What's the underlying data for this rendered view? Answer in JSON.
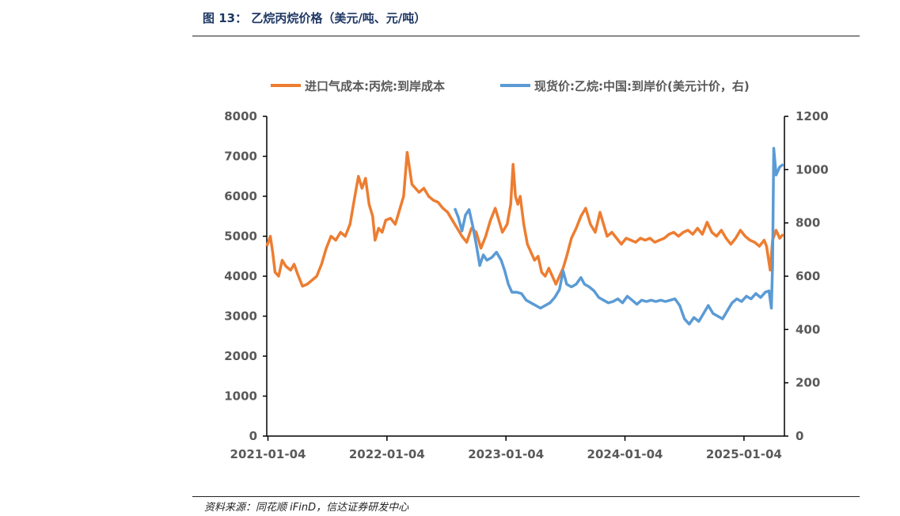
{
  "header": {
    "title": "图 13：  乙烷丙烷价格（美元/吨、元/吨）"
  },
  "footer": {
    "source": "资料来源：同花顺 iFinD，信达证券研发中心"
  },
  "colors": {
    "orange": "#ed7d31",
    "blue": "#5b9bd5",
    "axis": "#595959"
  },
  "chart_data": {
    "type": "line",
    "title": "乙烷丙烷价格（美元/吨、元/吨）",
    "x_ticks": [
      "2021-01-04",
      "2022-01-04",
      "2023-01-04",
      "2024-01-04",
      "2025-01-04"
    ],
    "y_left": {
      "ylim": [
        0,
        8000
      ],
      "ticks": [
        "0",
        "1000",
        "2000",
        "3000",
        "4000",
        "5000",
        "6000",
        "7000",
        "8000"
      ]
    },
    "y_right": {
      "ylim": [
        0,
        1200
      ],
      "ticks": [
        "0",
        "200",
        "400",
        "600",
        "800",
        "1000",
        "1200"
      ]
    },
    "series": [
      {
        "name": "进口气成本:丙烷:到岸成本",
        "axis": "left",
        "points": [
          [
            2021.0,
            4750
          ],
          [
            2021.03,
            5000
          ],
          [
            2021.05,
            4600
          ],
          [
            2021.07,
            4100
          ],
          [
            2021.1,
            4000
          ],
          [
            2021.13,
            4400
          ],
          [
            2021.16,
            4250
          ],
          [
            2021.2,
            4150
          ],
          [
            2021.23,
            4300
          ],
          [
            2021.26,
            4050
          ],
          [
            2021.3,
            3750
          ],
          [
            2021.34,
            3800
          ],
          [
            2021.38,
            3900
          ],
          [
            2021.42,
            4000
          ],
          [
            2021.46,
            4300
          ],
          [
            2021.5,
            4700
          ],
          [
            2021.54,
            5000
          ],
          [
            2021.58,
            4900
          ],
          [
            2021.62,
            5100
          ],
          [
            2021.66,
            5000
          ],
          [
            2021.7,
            5300
          ],
          [
            2021.74,
            6000
          ],
          [
            2021.77,
            6500
          ],
          [
            2021.8,
            6200
          ],
          [
            2021.83,
            6450
          ],
          [
            2021.86,
            5800
          ],
          [
            2021.89,
            5500
          ],
          [
            2021.91,
            4900
          ],
          [
            2021.94,
            5200
          ],
          [
            2021.97,
            5100
          ],
          [
            2022.0,
            5400
          ],
          [
            2022.04,
            5450
          ],
          [
            2022.08,
            5300
          ],
          [
            2022.12,
            5700
          ],
          [
            2022.15,
            6000
          ],
          [
            2022.18,
            7100
          ],
          [
            2022.2,
            6700
          ],
          [
            2022.22,
            6300
          ],
          [
            2022.25,
            6200
          ],
          [
            2022.28,
            6100
          ],
          [
            2022.32,
            6200
          ],
          [
            2022.36,
            6000
          ],
          [
            2022.4,
            5900
          ],
          [
            2022.44,
            5850
          ],
          [
            2022.48,
            5700
          ],
          [
            2022.52,
            5600
          ],
          [
            2022.56,
            5400
          ],
          [
            2022.6,
            5200
          ],
          [
            2022.64,
            5000
          ],
          [
            2022.68,
            4850
          ],
          [
            2022.72,
            5200
          ],
          [
            2022.76,
            5100
          ],
          [
            2022.8,
            4700
          ],
          [
            2022.84,
            5000
          ],
          [
            2022.88,
            5400
          ],
          [
            2022.92,
            5700
          ],
          [
            2022.95,
            5400
          ],
          [
            2022.98,
            5100
          ],
          [
            2023.02,
            5300
          ],
          [
            2023.05,
            5800
          ],
          [
            2023.07,
            6800
          ],
          [
            2023.09,
            6000
          ],
          [
            2023.11,
            5800
          ],
          [
            2023.13,
            6000
          ],
          [
            2023.16,
            5300
          ],
          [
            2023.19,
            4800
          ],
          [
            2023.22,
            4600
          ],
          [
            2023.25,
            4400
          ],
          [
            2023.28,
            4500
          ],
          [
            2023.31,
            4100
          ],
          [
            2023.34,
            4000
          ],
          [
            2023.37,
            4200
          ],
          [
            2023.4,
            4000
          ],
          [
            2023.43,
            3800
          ],
          [
            2023.46,
            4000
          ],
          [
            2023.49,
            4200
          ],
          [
            2023.52,
            4500
          ],
          [
            2023.56,
            4950
          ],
          [
            2023.6,
            5200
          ],
          [
            2023.64,
            5500
          ],
          [
            2023.68,
            5700
          ],
          [
            2023.72,
            5300
          ],
          [
            2023.76,
            5100
          ],
          [
            2023.8,
            5600
          ],
          [
            2023.83,
            5300
          ],
          [
            2023.86,
            5000
          ],
          [
            2023.9,
            5100
          ],
          [
            2023.94,
            4950
          ],
          [
            2023.98,
            4800
          ],
          [
            2024.02,
            4950
          ],
          [
            2024.06,
            4900
          ],
          [
            2024.1,
            4850
          ],
          [
            2024.14,
            4950
          ],
          [
            2024.18,
            4900
          ],
          [
            2024.22,
            4950
          ],
          [
            2024.26,
            4850
          ],
          [
            2024.3,
            4900
          ],
          [
            2024.34,
            4950
          ],
          [
            2024.38,
            5050
          ],
          [
            2024.42,
            5100
          ],
          [
            2024.46,
            5000
          ],
          [
            2024.5,
            5100
          ],
          [
            2024.54,
            5150
          ],
          [
            2024.58,
            5050
          ],
          [
            2024.62,
            5200
          ],
          [
            2024.66,
            5050
          ],
          [
            2024.7,
            5350
          ],
          [
            2024.74,
            5100
          ],
          [
            2024.78,
            5000
          ],
          [
            2024.82,
            5150
          ],
          [
            2024.86,
            4950
          ],
          [
            2024.9,
            4800
          ],
          [
            2024.94,
            4950
          ],
          [
            2024.98,
            5150
          ],
          [
            2025.02,
            5000
          ],
          [
            2025.06,
            4900
          ],
          [
            2025.1,
            4850
          ],
          [
            2025.14,
            4750
          ],
          [
            2025.18,
            4900
          ],
          [
            2025.2,
            4750
          ],
          [
            2025.23,
            4150
          ],
          [
            2025.25,
            4900
          ],
          [
            2025.28,
            5150
          ],
          [
            2025.31,
            4950
          ],
          [
            2025.34,
            5050
          ]
        ]
      },
      {
        "name": "现货价:乙烷:中国:到岸价(美元计价，右)",
        "axis": "right",
        "points": [
          [
            2022.58,
            855
          ],
          [
            2022.61,
            820
          ],
          [
            2022.64,
            770
          ],
          [
            2022.67,
            830
          ],
          [
            2022.7,
            850
          ],
          [
            2022.73,
            790
          ],
          [
            2022.76,
            720
          ],
          [
            2022.79,
            640
          ],
          [
            2022.82,
            680
          ],
          [
            2022.85,
            660
          ],
          [
            2022.89,
            670
          ],
          [
            2022.93,
            690
          ],
          [
            2022.97,
            660
          ],
          [
            2023.0,
            620
          ],
          [
            2023.03,
            570
          ],
          [
            2023.06,
            540
          ],
          [
            2023.1,
            540
          ],
          [
            2023.14,
            535
          ],
          [
            2023.18,
            510
          ],
          [
            2023.22,
            500
          ],
          [
            2023.26,
            490
          ],
          [
            2023.3,
            480
          ],
          [
            2023.34,
            490
          ],
          [
            2023.38,
            500
          ],
          [
            2023.42,
            520
          ],
          [
            2023.46,
            550
          ],
          [
            2023.49,
            620
          ],
          [
            2023.52,
            570
          ],
          [
            2023.56,
            560
          ],
          [
            2023.6,
            570
          ],
          [
            2023.64,
            595
          ],
          [
            2023.67,
            570
          ],
          [
            2023.71,
            560
          ],
          [
            2023.75,
            545
          ],
          [
            2023.79,
            520
          ],
          [
            2023.83,
            510
          ],
          [
            2023.87,
            500
          ],
          [
            2023.91,
            505
          ],
          [
            2023.95,
            515
          ],
          [
            2023.99,
            500
          ],
          [
            2024.03,
            525
          ],
          [
            2024.07,
            510
          ],
          [
            2024.11,
            495
          ],
          [
            2024.15,
            510
          ],
          [
            2024.19,
            505
          ],
          [
            2024.23,
            510
          ],
          [
            2024.27,
            505
          ],
          [
            2024.31,
            510
          ],
          [
            2024.35,
            505
          ],
          [
            2024.39,
            510
          ],
          [
            2024.43,
            515
          ],
          [
            2024.47,
            490
          ],
          [
            2024.51,
            440
          ],
          [
            2024.55,
            420
          ],
          [
            2024.59,
            445
          ],
          [
            2024.63,
            430
          ],
          [
            2024.67,
            460
          ],
          [
            2024.71,
            490
          ],
          [
            2024.75,
            460
          ],
          [
            2024.79,
            450
          ],
          [
            2024.83,
            440
          ],
          [
            2024.87,
            470
          ],
          [
            2024.91,
            500
          ],
          [
            2024.95,
            515
          ],
          [
            2024.99,
            505
          ],
          [
            2025.03,
            525
          ],
          [
            2025.07,
            515
          ],
          [
            2025.11,
            535
          ],
          [
            2025.15,
            520
          ],
          [
            2025.19,
            540
          ],
          [
            2025.22,
            545
          ],
          [
            2025.24,
            480
          ],
          [
            2025.25,
            640
          ],
          [
            2025.26,
            1080
          ],
          [
            2025.28,
            980
          ],
          [
            2025.31,
            1010
          ],
          [
            2025.34,
            1020
          ]
        ]
      }
    ]
  }
}
